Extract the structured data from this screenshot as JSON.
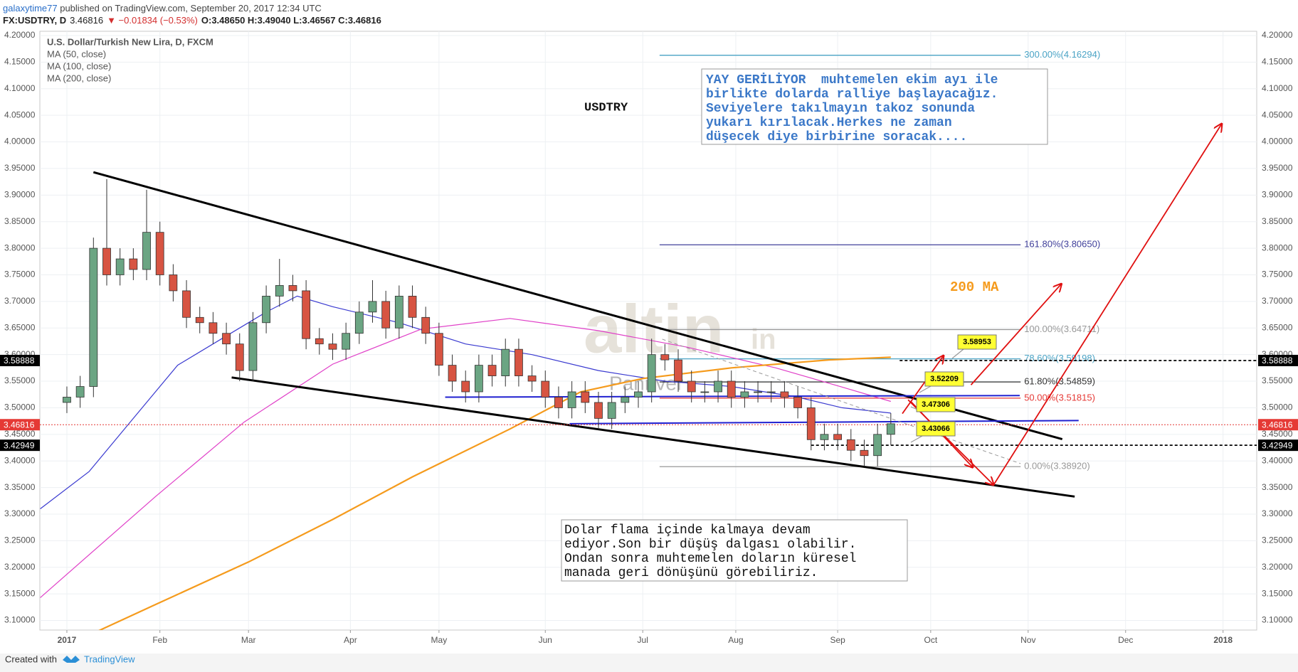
{
  "header": {
    "user": "galaxytime77",
    "published": " published on TradingView.com, September 20, 2017 12:34 UTC",
    "symbol": "FX:USDTRY, D",
    "last": "3.46816",
    "change": "▼ −0.01834 (−0.53%)",
    "ohlc": "O:3.48650 H:3.49040 L:3.46567 C:3.46816"
  },
  "footer": {
    "created": "Created with",
    "brand": "TradingView"
  },
  "chart_data": {
    "type": "candlestick",
    "title": "U.S. Dollar/Turkish New Lira, D, FXCM",
    "symbol_label": "USDTRY",
    "up_color": "#6ba583",
    "down_color": "#d75442",
    "x": [
      0,
      3,
      6,
      9,
      12,
      15,
      18,
      21,
      24,
      27,
      30,
      33,
      36,
      39,
      42,
      45,
      48,
      51,
      54,
      57,
      60,
      63,
      66,
      69,
      72,
      75,
      78,
      81,
      84,
      87,
      90,
      93,
      96,
      99,
      102,
      105,
      108,
      111,
      114,
      117,
      120,
      123,
      126,
      129,
      132,
      135,
      138,
      141,
      144,
      147,
      150,
      153,
      156,
      159,
      162,
      165,
      168,
      171,
      174,
      177,
      180,
      183,
      186
    ],
    "open": [
      3.51,
      3.52,
      3.54,
      3.8,
      3.75,
      3.78,
      3.76,
      3.83,
      3.75,
      3.72,
      3.67,
      3.66,
      3.64,
      3.62,
      3.57,
      3.66,
      3.71,
      3.73,
      3.72,
      3.63,
      3.62,
      3.61,
      3.64,
      3.68,
      3.7,
      3.65,
      3.71,
      3.67,
      3.64,
      3.58,
      3.55,
      3.53,
      3.58,
      3.56,
      3.61,
      3.56,
      3.55,
      3.52,
      3.5,
      3.53,
      3.51,
      3.48,
      3.51,
      3.52,
      3.53,
      3.6,
      3.59,
      3.55,
      3.53,
      3.53,
      3.55,
      3.52,
      3.53,
      3.53,
      3.53,
      3.52,
      3.5,
      3.44,
      3.45,
      3.44,
      3.42,
      3.41,
      3.45
    ],
    "high": [
      3.54,
      3.56,
      3.82,
      3.93,
      3.8,
      3.8,
      3.91,
      3.85,
      3.77,
      3.74,
      3.69,
      3.68,
      3.66,
      3.64,
      3.68,
      3.73,
      3.78,
      3.75,
      3.74,
      3.65,
      3.64,
      3.66,
      3.7,
      3.74,
      3.72,
      3.73,
      3.73,
      3.69,
      3.66,
      3.6,
      3.57,
      3.6,
      3.6,
      3.63,
      3.63,
      3.58,
      3.57,
      3.54,
      3.55,
      3.55,
      3.53,
      3.53,
      3.54,
      3.55,
      3.63,
      3.62,
      3.61,
      3.57,
      3.55,
      3.57,
      3.57,
      3.55,
      3.55,
      3.55,
      3.55,
      3.54,
      3.52,
      3.47,
      3.47,
      3.46,
      3.44,
      3.47,
      3.49
    ],
    "low": [
      3.49,
      3.5,
      3.52,
      3.73,
      3.73,
      3.74,
      3.74,
      3.73,
      3.7,
      3.65,
      3.64,
      3.62,
      3.6,
      3.55,
      3.55,
      3.64,
      3.69,
      3.7,
      3.61,
      3.6,
      3.59,
      3.59,
      3.62,
      3.66,
      3.63,
      3.63,
      3.65,
      3.62,
      3.56,
      3.53,
      3.51,
      3.51,
      3.54,
      3.54,
      3.54,
      3.53,
      3.5,
      3.48,
      3.48,
      3.49,
      3.46,
      3.46,
      3.49,
      3.5,
      3.51,
      3.57,
      3.53,
      3.51,
      3.51,
      3.51,
      3.5,
      3.5,
      3.51,
      3.51,
      3.5,
      3.48,
      3.42,
      3.42,
      3.42,
      3.4,
      3.39,
      3.39,
      3.43
    ],
    "close": [
      3.52,
      3.54,
      3.8,
      3.75,
      3.78,
      3.76,
      3.83,
      3.75,
      3.72,
      3.67,
      3.66,
      3.64,
      3.62,
      3.57,
      3.66,
      3.71,
      3.73,
      3.72,
      3.63,
      3.62,
      3.61,
      3.64,
      3.68,
      3.7,
      3.65,
      3.71,
      3.67,
      3.64,
      3.58,
      3.55,
      3.53,
      3.58,
      3.56,
      3.61,
      3.56,
      3.55,
      3.52,
      3.5,
      3.53,
      3.51,
      3.48,
      3.51,
      3.52,
      3.53,
      3.6,
      3.59,
      3.55,
      3.53,
      3.53,
      3.55,
      3.52,
      3.53,
      3.53,
      3.53,
      3.52,
      3.5,
      3.44,
      3.45,
      3.44,
      3.42,
      3.41,
      3.45,
      3.47
    ],
    "series": [
      {
        "name": "MA (50, close)",
        "color": "#3a3ad0",
        "x": [
          -6,
          5,
          15,
          25,
          35,
          45,
          52,
          60,
          75,
          90,
          105,
          120,
          135,
          150,
          165,
          175,
          186
        ],
        "values": [
          3.31,
          3.38,
          3.48,
          3.58,
          3.63,
          3.68,
          3.71,
          3.69,
          3.66,
          3.62,
          3.6,
          3.57,
          3.55,
          3.54,
          3.52,
          3.5,
          3.49
        ]
      },
      {
        "name": "MA (100, close)",
        "color": "#e040c8",
        "x": [
          -6,
          20,
          40,
          60,
          80,
          100,
          120,
          140,
          160,
          175,
          186
        ],
        "values": [
          3.143,
          3.333,
          3.473,
          3.582,
          3.648,
          3.668,
          3.645,
          3.614,
          3.575,
          3.539,
          3.512
        ]
      },
      {
        "name": "MA (200, close)",
        "color": "#f59b1d",
        "x": [
          7,
          20,
          41,
          60,
          78,
          100,
          116,
          130,
          150,
          172,
          186
        ],
        "values": [
          3.08,
          3.13,
          3.21,
          3.29,
          3.37,
          3.46,
          3.53,
          3.555,
          3.575,
          3.59,
          3.595
        ]
      }
    ],
    "xlim": [
      -6.1,
      268.6
    ],
    "ylim": [
      3.082,
      4.208
    ],
    "xticks": [
      {
        "value": 0,
        "label": "2017"
      },
      {
        "value": 21,
        "label": "Feb"
      },
      {
        "value": 41,
        "label": "Mar"
      },
      {
        "value": 64,
        "label": "Apr"
      },
      {
        "value": 84,
        "label": "May"
      },
      {
        "value": 108,
        "label": "Jun"
      },
      {
        "value": 130,
        "label": "Jul"
      },
      {
        "value": 151,
        "label": "Aug"
      },
      {
        "value": 174,
        "label": "Sep"
      },
      {
        "value": 195,
        "label": "Oct"
      },
      {
        "value": 217,
        "label": "Nov"
      },
      {
        "value": 239,
        "label": "Dec"
      },
      {
        "value": 261,
        "label": "2018"
      }
    ],
    "yticks": [
      {
        "value": 4.2,
        "label": "4.20000"
      },
      {
        "value": 4.15,
        "label": "4.15000"
      },
      {
        "value": 4.1,
        "label": "4.10000"
      },
      {
        "value": 4.05,
        "label": "4.05000"
      },
      {
        "value": 4,
        "label": "4.00000"
      },
      {
        "value": 3.95,
        "label": "3.95000"
      },
      {
        "value": 3.9,
        "label": "3.90000"
      },
      {
        "value": 3.85,
        "label": "3.85000"
      },
      {
        "value": 3.8,
        "label": "3.80000"
      },
      {
        "value": 3.75,
        "label": "3.75000"
      },
      {
        "value": 3.7,
        "label": "3.70000"
      },
      {
        "value": 3.65,
        "label": "3.65000"
      },
      {
        "value": 3.6,
        "label": "3.60000"
      },
      {
        "value": 3.55,
        "label": "3.55000"
      },
      {
        "value": 3.5,
        "label": "3.50000"
      },
      {
        "value": 3.45,
        "label": "3.45000"
      },
      {
        "value": 3.4,
        "label": "3.40000"
      },
      {
        "value": 3.35,
        "label": "3.35000"
      },
      {
        "value": 3.3,
        "label": "3.30000"
      },
      {
        "value": 3.25,
        "label": "3.25000"
      },
      {
        "value": 3.2,
        "label": "3.20000"
      },
      {
        "value": 3.15,
        "label": "3.15000"
      },
      {
        "value": 3.1,
        "label": "3.10000"
      }
    ],
    "grid": true,
    "price_lines": [
      {
        "value": 3.58888,
        "color": "#000000",
        "from": 188
      },
      {
        "value": 3.46816,
        "color": "#e53935",
        "from": -6.1
      },
      {
        "value": 3.42949,
        "color": "#000000",
        "from": 168
      }
    ],
    "fib": {
      "from": 133.8,
      "to": 215.3,
      "levels": [
        {
          "value": 4.16294,
          "label": "300.00%(4.16294)",
          "color": "#4aa3c5"
        },
        {
          "value": 3.8065,
          "label": "161.80%(3.80650)",
          "color": "#3f3f9a"
        },
        {
          "value": 3.64711,
          "label": "100.00%(3.64711)",
          "color": "#999999"
        },
        {
          "value": 3.59198,
          "label": "78.60%(3.59198)",
          "color": "#4aa3c5"
        },
        {
          "value": 3.54859,
          "label": "61.80%(3.54859)",
          "color": "#333333"
        },
        {
          "value": 3.51815,
          "label": "50.00%(3.51815)",
          "color": "#e53935"
        },
        {
          "value": 3.3892,
          "label": "0.00%(3.38920)",
          "color": "#999999"
        }
      ]
    },
    "trend_lines": [
      {
        "from": [
          6.0,
          3.943
        ],
        "to": [
          224.7,
          3.441
        ],
        "color": "#000000",
        "width": 3
      },
      {
        "from": [
          37.2,
          3.557
        ],
        "to": [
          227.5,
          3.333
        ],
        "color": "#000000",
        "width": 3
      },
      {
        "from": [
          85.4,
          3.52
        ],
        "to": [
          215.1,
          3.523
        ],
        "color": "#2020d0",
        "width": 2
      },
      {
        "from": [
          113.5,
          3.47
        ],
        "to": [
          228.4,
          3.476
        ],
        "color": "#2020d0",
        "width": 2
      },
      {
        "from": [
          134.4,
          3.629
        ],
        "to": [
          215.3,
          3.395
        ],
        "color": "#999999",
        "width": 1
      }
    ],
    "arrows": [
      {
        "from": [
          188.6,
          3.489
        ],
        "to": [
          197.9,
          3.598
        ]
      },
      {
        "from": [
          190.5,
          3.512
        ],
        "to": [
          204.5,
          3.388
        ]
      },
      {
        "from": [
          204.1,
          3.543
        ],
        "to": [
          224.5,
          3.733
        ]
      },
      {
        "from": [
          189.9,
          3.515
        ],
        "to": [
          209.2,
          3.355
        ]
      },
      {
        "from": [
          209.2,
          3.355
        ],
        "to": [
          260.7,
          4.034
        ]
      }
    ],
    "arrow_color": "#e01010",
    "callouts": [
      "3.58953",
      "3.52209",
      "3.47306",
      "3.43066"
    ],
    "note_blue": [
      "YAY GERİLİYOR  muhtemelen ekim ayı ile",
      "birlikte dolarda ralliye başlayacağız.",
      "Seviyelere takılmayın takoz sonunda",
      "yukarı kırılacak.Herkes ne zaman",
      "düşecek diye birbirine soracak...."
    ],
    "note_black": [
      "Dolar flama içinde kalmaya devam",
      "ediyor.Son bir düşüş dalgası olabilir.",
      "Ondan sonra muhtemelen doların küresel",
      "manada geri dönüşünü görebiliriz."
    ],
    "ma_label": "200 MA",
    "watermark": [
      "altin",
      "in",
      "Panriver"
    ]
  }
}
